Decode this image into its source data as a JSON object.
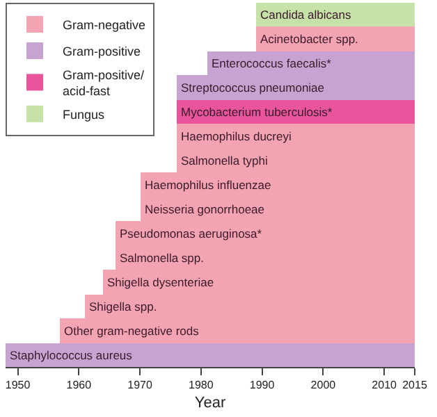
{
  "chart_data": {
    "type": "bar",
    "orientation": "horizontal",
    "xlabel": "Year",
    "categories": [
      "Candida albicans",
      "Acinetobacter spp.",
      "Enterococcus faecalis*",
      "Streptococcus pneumoniae",
      "Mycobacterium tuberculosis*",
      "Haemophilus ducreyi",
      "Salmonella typhi",
      "Haemophilus influenzae",
      "Neisseria gonorrhoeae",
      "Pseudomonas aeruginosa*",
      "Salmonella spp.",
      "Shigella dysenteriae",
      "Shigella spp.",
      "Other gram-negative rods",
      "Staphylococcus aureus"
    ],
    "series": [
      {
        "name": "Gram-negative",
        "color": "#f4a3b3",
        "base": [
          null,
          1989,
          null,
          null,
          null,
          1976,
          1976,
          1970,
          1970,
          1966,
          1966,
          1964,
          1961,
          1957,
          null
        ],
        "values": [
          null,
          26,
          null,
          null,
          null,
          39,
          39,
          45,
          45,
          49,
          49,
          51,
          54,
          58,
          null
        ]
      },
      {
        "name": "Gram-positive",
        "color": "#c7a3d1",
        "base": [
          null,
          null,
          1981,
          1976,
          null,
          null,
          null,
          null,
          null,
          null,
          null,
          null,
          null,
          null,
          1948
        ],
        "values": [
          null,
          null,
          34,
          39,
          null,
          null,
          null,
          null,
          null,
          null,
          null,
          null,
          null,
          null,
          67
        ]
      },
      {
        "name": "Gram-positive/\nacid-fast",
        "color": "#e8559c",
        "base": [
          null,
          null,
          null,
          null,
          1976,
          null,
          null,
          null,
          null,
          null,
          null,
          null,
          null,
          null,
          null
        ],
        "values": [
          null,
          null,
          null,
          null,
          39,
          null,
          null,
          null,
          null,
          null,
          null,
          null,
          null,
          null,
          null
        ]
      },
      {
        "name": "Fungus",
        "color": "#c6e2a8",
        "base": [
          1989,
          null,
          null,
          null,
          null,
          null,
          null,
          null,
          null,
          null,
          null,
          null,
          null,
          null,
          null
        ],
        "values": [
          26,
          null,
          null,
          null,
          null,
          null,
          null,
          null,
          null,
          null,
          null,
          null,
          null,
          null,
          null
        ]
      }
    ],
    "xlim": [
      1948,
      2015
    ],
    "xticks": [
      1950,
      1960,
      1970,
      1980,
      1990,
      2000,
      2010,
      2015
    ],
    "tick_labels": "x",
    "legend": "top left"
  }
}
